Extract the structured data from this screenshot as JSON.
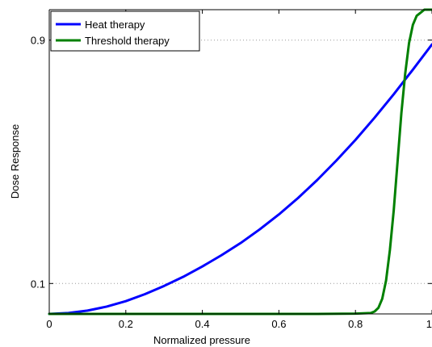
{
  "chart_data": {
    "type": "line",
    "title": "",
    "xlabel": "Normalized pressure",
    "ylabel": "Dose Response",
    "xlim": [
      0,
      1
    ],
    "ylim": [
      0,
      1
    ],
    "x_ticks": [
      0,
      0.2,
      0.4,
      0.6,
      0.8,
      1
    ],
    "x_tick_labels": [
      "0",
      "0.2",
      "0.4",
      "0.6",
      "0.8",
      "1"
    ],
    "y_ticks": [
      0.1,
      0.9
    ],
    "y_tick_labels": [
      "0.1",
      "0.9"
    ],
    "grid": "dotted horizontal at y ticks",
    "legend_position": "top-left",
    "colors": {
      "heat": "#0000ff",
      "threshold": "#008000"
    },
    "series": [
      {
        "name": "Heat therapy",
        "color": "#0000ff",
        "x": [
          0,
          0.05,
          0.1,
          0.15,
          0.2,
          0.25,
          0.3,
          0.35,
          0.4,
          0.45,
          0.5,
          0.55,
          0.6,
          0.65,
          0.7,
          0.75,
          0.8,
          0.85,
          0.9,
          0.95,
          1.0
        ],
        "y": [
          0,
          0.003,
          0.011,
          0.024,
          0.042,
          0.065,
          0.092,
          0.122,
          0.156,
          0.193,
          0.233,
          0.278,
          0.327,
          0.381,
          0.44,
          0.504,
          0.572,
          0.645,
          0.722,
          0.803,
          0.886
        ]
      },
      {
        "name": "Threshold therapy",
        "color": "#008000",
        "x": [
          0,
          0.7,
          0.8,
          0.84,
          0.85,
          0.86,
          0.87,
          0.88,
          0.89,
          0.9,
          0.91,
          0.92,
          0.93,
          0.94,
          0.95,
          0.96,
          0.97,
          0.98,
          0.99,
          1.0
        ],
        "y": [
          0,
          0,
          0.001,
          0.003,
          0.008,
          0.02,
          0.05,
          0.11,
          0.21,
          0.34,
          0.5,
          0.66,
          0.79,
          0.89,
          0.95,
          0.98,
          0.99,
          1.0,
          1.0,
          1.0
        ]
      }
    ]
  }
}
